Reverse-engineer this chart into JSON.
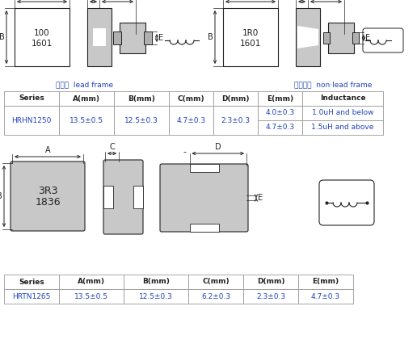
{
  "bg_color": "#ffffff",
  "table1": {
    "headers": [
      "Series",
      "A(mm)",
      "B(mm)",
      "C(mm)",
      "D(mm)",
      "E(mm)",
      "Inductance"
    ],
    "row1_series": "HRHN1250",
    "row1_a": "13.5±0.5",
    "row1_b": "12.5±0.3",
    "row1_c": "4.7±0.3",
    "row1_d": "2.3±0.3",
    "row1_e1": "4.0±0.3",
    "row1_ind1": "1.0uH and below",
    "row1_e2": "4.7±0.3",
    "row1_ind2": "1.5uH and above"
  },
  "table2": {
    "headers": [
      "Series",
      "A(mm)",
      "B(mm)",
      "C(mm)",
      "D(mm)",
      "E(mm)"
    ],
    "row1_series": "HRTN1265",
    "row1_a": "13.5±0.5",
    "row1_b": "12.5±0.3",
    "row1_c": "6.2±0.3",
    "row1_d": "2.3±0.3",
    "row1_e": "4.7±0.3"
  },
  "label1": "引脚框  lead frame",
  "label2": "无引脚框  non·lead frame",
  "blue": "#2244bb",
  "black": "#222222",
  "light_gray": "#c8c8c8",
  "mid_gray": "#b0b0b0",
  "table_border": "#999999"
}
